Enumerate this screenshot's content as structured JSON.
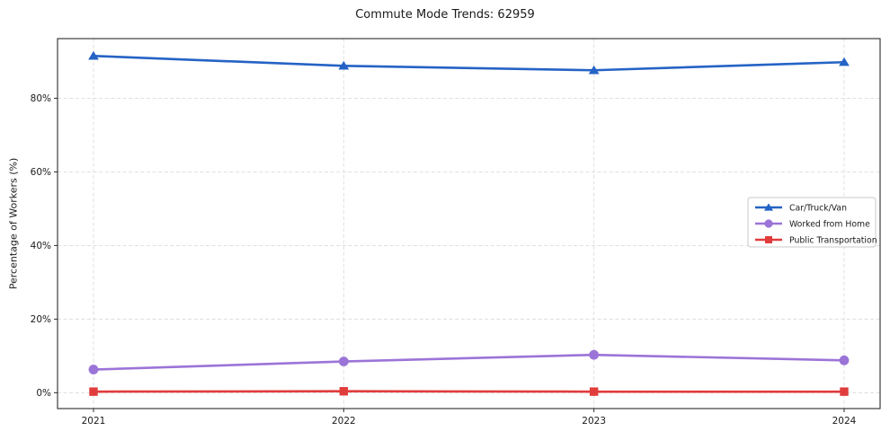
{
  "chart_data": {
    "type": "line",
    "title": "Commute Mode Trends: 62959",
    "xlabel": "",
    "ylabel": "Percentage of Workers (%)",
    "categories": [
      "2021",
      "2022",
      "2023",
      "2024"
    ],
    "series": [
      {
        "name": "Car/Truck/Van",
        "color": "#2563c5",
        "marker": "triangle",
        "values": [
          91.5,
          88.8,
          87.6,
          89.8
        ]
      },
      {
        "name": "Worked from Home",
        "color": "#9b74d8",
        "marker": "circle",
        "values": [
          6.3,
          8.5,
          10.3,
          8.8
        ]
      },
      {
        "name": "Public Transportation",
        "color": "#e13c3c",
        "marker": "square",
        "values": [
          0.3,
          0.4,
          0.3,
          0.3
        ]
      }
    ],
    "yticks": [
      0,
      20,
      40,
      60,
      80
    ],
    "ytick_labels": [
      "0%",
      "20%",
      "40%",
      "60%",
      "80%"
    ],
    "ylim": [
      -4.3,
      96.2
    ],
    "grid": "dashed-both-axes",
    "grid_color": "#dcdcdc",
    "spine_color": "#2b2b2b",
    "legend_position": "center-right",
    "legend": [
      "Car/Truck/Van",
      "Worked from Home",
      "Public Transportation"
    ]
  }
}
